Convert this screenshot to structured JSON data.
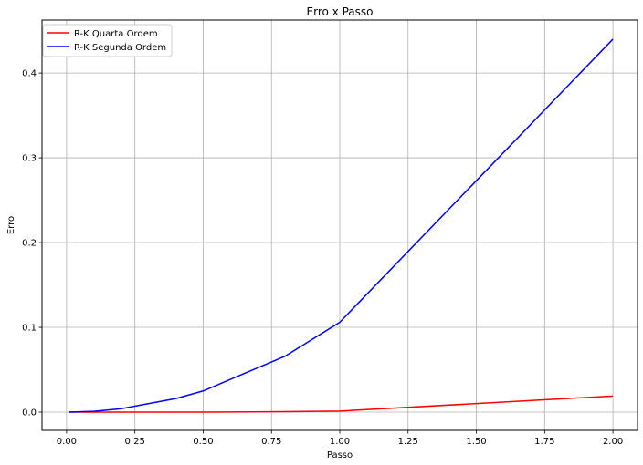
{
  "chart_data": {
    "type": "line",
    "title": "Erro x Passo",
    "xlabel": "Passo",
    "ylabel": "Erro",
    "xlim": [
      -0.09,
      2.09
    ],
    "ylim": [
      -0.0215,
      0.4625
    ],
    "xticks": [
      "0.00",
      "0.25",
      "0.50",
      "0.75",
      "1.00",
      "1.25",
      "1.50",
      "1.75",
      "2.00"
    ],
    "yticks": [
      "0.0",
      "0.1",
      "0.2",
      "0.3",
      "0.4"
    ],
    "grid": true,
    "legend_position": "top-left",
    "series": [
      {
        "name": "R-K Quarta Ordem",
        "color": "#ff0000",
        "x": [
          0.01,
          0.1,
          0.2,
          0.4,
          0.5,
          0.8,
          1.0,
          2.0
        ],
        "y": [
          0.0,
          0.0,
          0.0,
          0.0,
          0.0,
          0.0005,
          0.0012,
          0.019
        ]
      },
      {
        "name": "R-K Segunda Ordem",
        "color": "#0000ff",
        "x": [
          0.01,
          0.1,
          0.2,
          0.4,
          0.5,
          0.8,
          1.0,
          2.0
        ],
        "y": [
          0.0,
          0.001,
          0.004,
          0.016,
          0.025,
          0.066,
          0.106,
          0.44
        ]
      }
    ]
  }
}
